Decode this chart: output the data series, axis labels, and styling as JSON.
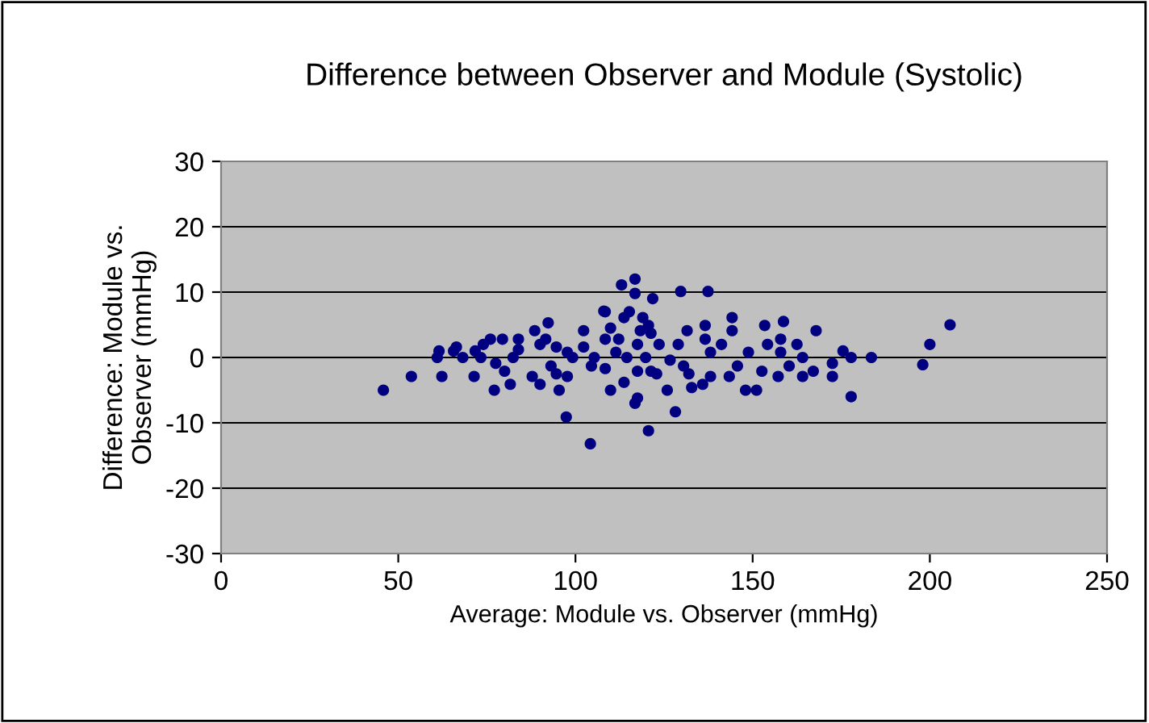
{
  "chart_data": {
    "type": "scatter",
    "title": "Difference between Observer and Module (Systolic)",
    "xlabel": "Average: Module vs. Observer (mmHg)",
    "ylabel": "Difference: Module vs.\nObserver (mmHg)",
    "xlim": [
      0,
      250
    ],
    "xticks": [
      0,
      50,
      100,
      150,
      200,
      250
    ],
    "ylim": [
      -30,
      30
    ],
    "yticks": [
      -30,
      -20,
      -10,
      0,
      10,
      20,
      30
    ],
    "grid": "y",
    "marker": "circle",
    "legend": false,
    "series": [
      {
        "color": "#000080",
        "x": [
          45.8,
          53.7,
          61,
          61.5,
          62.3,
          65.6,
          66.4,
          68.2,
          71.4,
          71.7,
          73.3,
          74,
          76,
          77.1,
          77.5,
          79.4,
          80,
          81.6,
          82.4,
          83.9,
          83.9,
          87.8,
          88.5,
          90,
          90,
          91.6,
          92.3,
          93.1,
          94.6,
          95.4,
          97.4,
          94.6,
          97.7,
          97.7,
          99.2,
          102.3,
          102.3,
          104.5,
          104.2,
          108,
          108.4,
          108.4,
          113,
          116.8,
          116.8,
          121.8,
          129.7,
          137.4,
          108.4,
          113.7,
          115.2,
          119,
          120.6,
          109.9,
          112.2,
          118.3,
          121.3,
          105.3,
          111.4,
          114.5,
          117.5,
          119.8,
          123.6,
          109.9,
          113.7,
          117.5,
          121.3,
          122.9,
          125.9,
          128.2,
          120.6,
          117.5,
          116.8,
          126.7,
          129,
          130.5,
          132,
          132.8,
          131.5,
          136.6,
          136.6,
          135.9,
          138.1,
          138.1,
          141.2,
          144.2,
          144.2,
          143.4,
          145.7,
          148,
          151.1,
          148.8,
          152.6,
          154.2,
          153.4,
          158.7,
          157.9,
          157.9,
          157.2,
          160.3,
          162.5,
          164.1,
          164.1,
          167.1,
          167.9,
          172.5,
          172.5,
          175.5,
          177.8,
          177.8,
          183.5,
          198,
          200,
          205.7
        ],
        "values": [
          -5,
          -2.9,
          0,
          1,
          -2.9,
          1,
          1.6,
          0,
          -2.9,
          1,
          0,
          2,
          2.8,
          -5,
          -0.9,
          2.8,
          -2.1,
          -4.1,
          0,
          2.8,
          1.2,
          -2.9,
          4.1,
          -4.1,
          2,
          2.8,
          5.3,
          -1.3,
          -2.5,
          -5,
          -9.1,
          1.6,
          0.8,
          -2.9,
          0,
          4.1,
          1.6,
          -1.3,
          -13.2,
          7.1,
          2.8,
          -1.7,
          11.1,
          12,
          9.8,
          9,
          10.1,
          10.1,
          7,
          6.1,
          7,
          6.1,
          4.9,
          4.5,
          2.8,
          4.1,
          3.7,
          0,
          0.8,
          0,
          2,
          0,
          2,
          -5,
          -3.8,
          -2.1,
          -2.1,
          -2.5,
          -5,
          -8.3,
          -11.2,
          -6.2,
          -7,
          -0.4,
          2,
          -1.3,
          -2.5,
          -4.6,
          4.1,
          4.9,
          2.8,
          -4.1,
          0.8,
          -2.9,
          2,
          6.1,
          4.1,
          -2.9,
          -1.3,
          -5,
          -5,
          0.8,
          -2.1,
          2,
          4.9,
          5.5,
          2.8,
          0.8,
          -2.9,
          -1.3,
          2,
          -2.9,
          0,
          -2.1,
          4.1,
          -0.9,
          -2.9,
          1,
          0,
          -6,
          0,
          -1.1,
          2,
          5
        ]
      }
    ]
  }
}
